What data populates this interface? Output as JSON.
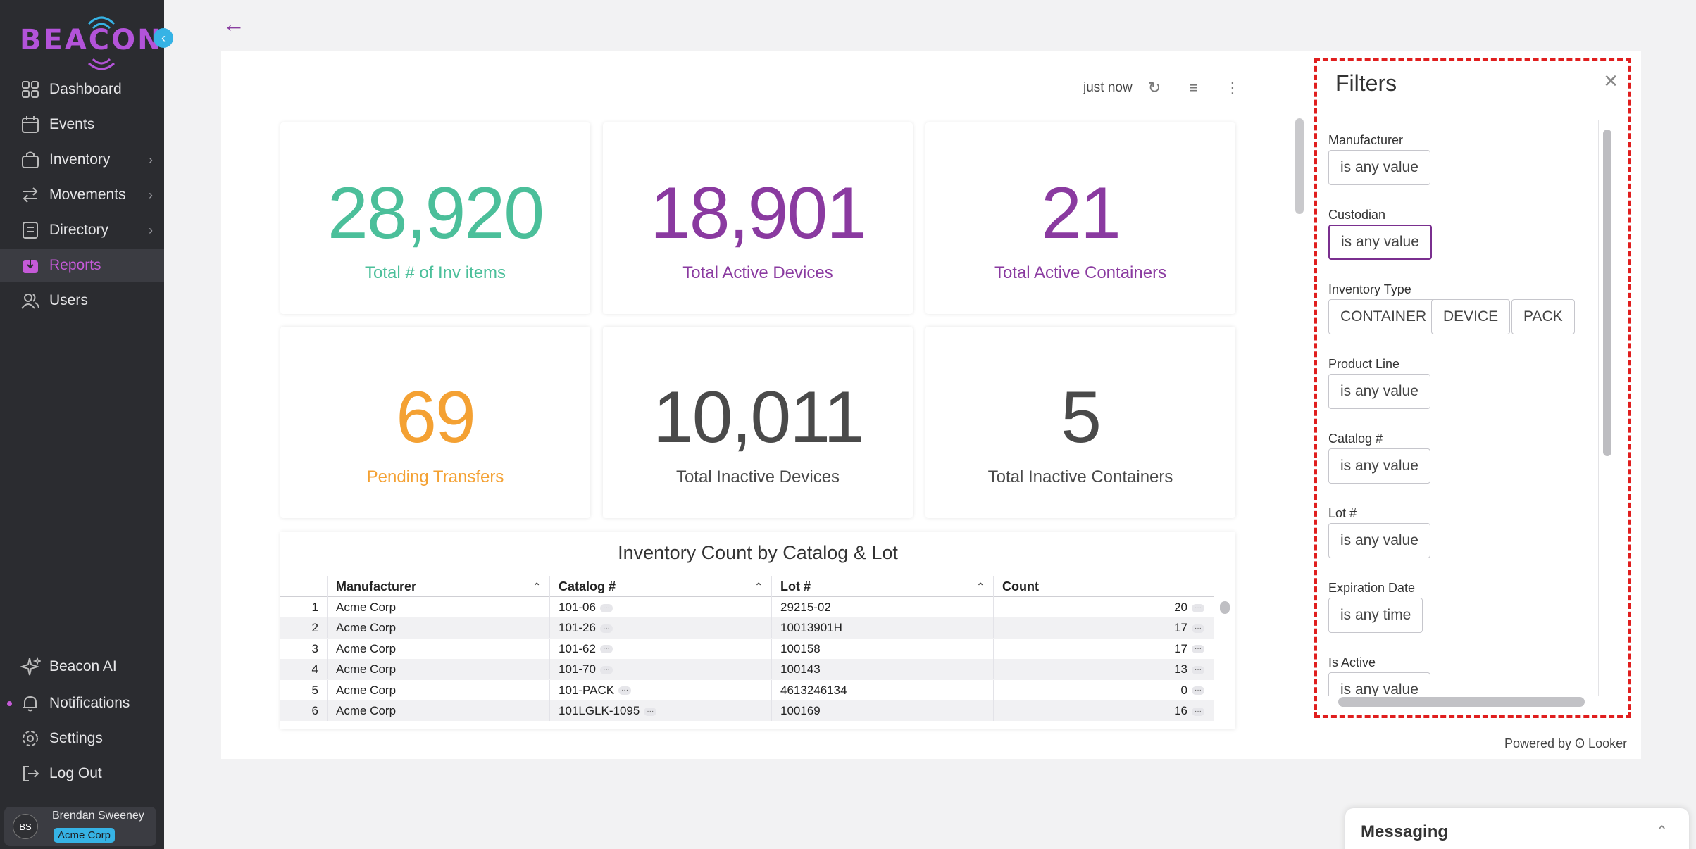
{
  "app": {
    "logo": "BEACON"
  },
  "sidebar": {
    "items": [
      {
        "label": "Dashboard",
        "icon": "grid-icon"
      },
      {
        "label": "Events",
        "icon": "calendar-icon"
      },
      {
        "label": "Inventory",
        "icon": "bag-icon",
        "has_submenu": true
      },
      {
        "label": "Movements",
        "icon": "arrows-icon",
        "has_submenu": true
      },
      {
        "label": "Directory",
        "icon": "book-icon",
        "has_submenu": true
      },
      {
        "label": "Reports",
        "icon": "report-icon",
        "active": true
      },
      {
        "label": "Users",
        "icon": "users-icon"
      }
    ],
    "bottom_items": [
      {
        "label": "Beacon AI",
        "icon": "sparkle-icon"
      },
      {
        "label": "Notifications",
        "icon": "bell-icon"
      },
      {
        "label": "Settings",
        "icon": "gear-icon"
      },
      {
        "label": "Log Out",
        "icon": "logout-icon"
      }
    ],
    "user": {
      "initials": "BS",
      "name": "Brendan Sweeney",
      "org": "Acme Corp"
    }
  },
  "toolbar": {
    "updated": "just now"
  },
  "kpis": [
    {
      "value": "28,920",
      "label": "Total # of Inv items",
      "color": "#4bbf9a"
    },
    {
      "value": "18,901",
      "label": "Total Active Devices",
      "color": "#8a3aa0"
    },
    {
      "value": "21",
      "label": "Total Active Containers",
      "color": "#8a3aa0"
    },
    {
      "value": "69",
      "label": "Pending Transfers",
      "color": "#f4a133"
    },
    {
      "value": "10,011",
      "label": "Total Inactive Devices",
      "color": "#4a4a4a"
    },
    {
      "value": "5",
      "label": "Total Inactive Containers",
      "color": "#4a4a4a"
    }
  ],
  "table": {
    "title": "Inventory Count by Catalog & Lot",
    "columns": [
      "Manufacturer",
      "Catalog #",
      "Lot #",
      "Count"
    ],
    "rows": [
      {
        "idx": "1",
        "manufacturer": "Acme Corp",
        "catalog": "101-06",
        "lot": "29215-02",
        "count": "20"
      },
      {
        "idx": "2",
        "manufacturer": "Acme Corp",
        "catalog": "101-26",
        "lot": "10013901H",
        "count": "17"
      },
      {
        "idx": "3",
        "manufacturer": "Acme Corp",
        "catalog": "101-62",
        "lot": "100158",
        "count": "17"
      },
      {
        "idx": "4",
        "manufacturer": "Acme Corp",
        "catalog": "101-70",
        "lot": "100143",
        "count": "13"
      },
      {
        "idx": "5",
        "manufacturer": "Acme Corp",
        "catalog": "101-PACK",
        "lot": "4613246134",
        "count": "0"
      },
      {
        "idx": "6",
        "manufacturer": "Acme Corp",
        "catalog": "101LGLK-1095",
        "lot": "100169",
        "count": "16"
      }
    ]
  },
  "filters": {
    "title": "Filters",
    "fields": [
      {
        "label": "Manufacturer",
        "chips": [
          "is any value"
        ]
      },
      {
        "label": "Custodian",
        "chips": [
          "is any value"
        ],
        "selected": true
      },
      {
        "label": "Inventory Type",
        "chips": [
          "CONTAINER",
          "DEVICE",
          "PACK"
        ]
      },
      {
        "label": "Product Line",
        "chips": [
          "is any value"
        ]
      },
      {
        "label": "Catalog #",
        "chips": [
          "is any value"
        ]
      },
      {
        "label": "Lot #",
        "chips": [
          "is any value"
        ]
      },
      {
        "label": "Expiration Date",
        "chips": [
          "is any time"
        ]
      },
      {
        "label": "Is Active",
        "chips": [
          "is any value"
        ]
      }
    ]
  },
  "footer": {
    "powered_by": "Powered by ʘ Looker"
  },
  "messaging": {
    "title": "Messaging"
  }
}
